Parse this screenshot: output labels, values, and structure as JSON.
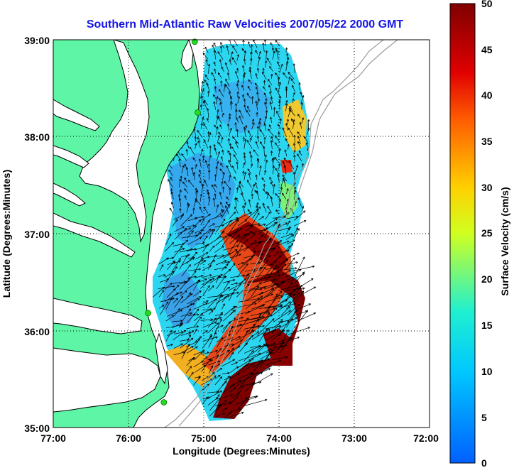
{
  "title": "Southern Mid-Atlantic Raw Velocities 2007/05/22 2000 GMT",
  "xlabel": "Longitude (Degrees:Minutes)",
  "ylabel": "Latitude (Degrees:Minutes)",
  "colorbar_label": "Surface Velocity (cm/s)",
  "colors": {
    "title": "#1414e6",
    "land": "#5ef5a6",
    "coast": "#000000",
    "bathymetry": "#9a9a9a",
    "station": "#22dd22"
  },
  "chart_data": {
    "type": "heatmap",
    "x_ticks": [
      "77:00",
      "76:00",
      "75:00",
      "74:00",
      "73:00",
      "72:00"
    ],
    "y_ticks": [
      "39:00",
      "38:00",
      "37:00",
      "36:00",
      "35:00"
    ],
    "xlim": [
      -77,
      -72
    ],
    "ylim": [
      35,
      39
    ],
    "grid": "dotted",
    "colorbar": {
      "range": [
        0,
        50
      ],
      "ticks": [
        "50",
        "45",
        "40",
        "35",
        "30",
        "25",
        "20",
        "15",
        "10",
        "5",
        "0"
      ],
      "colormap": "jet"
    },
    "stations": [
      {
        "lon": -75.12,
        "lat": 38.98
      },
      {
        "lon": -75.08,
        "lat": 38.25
      },
      {
        "lon": -75.74,
        "lat": 36.18
      },
      {
        "lon": -75.53,
        "lat": 35.26
      }
    ]
  }
}
